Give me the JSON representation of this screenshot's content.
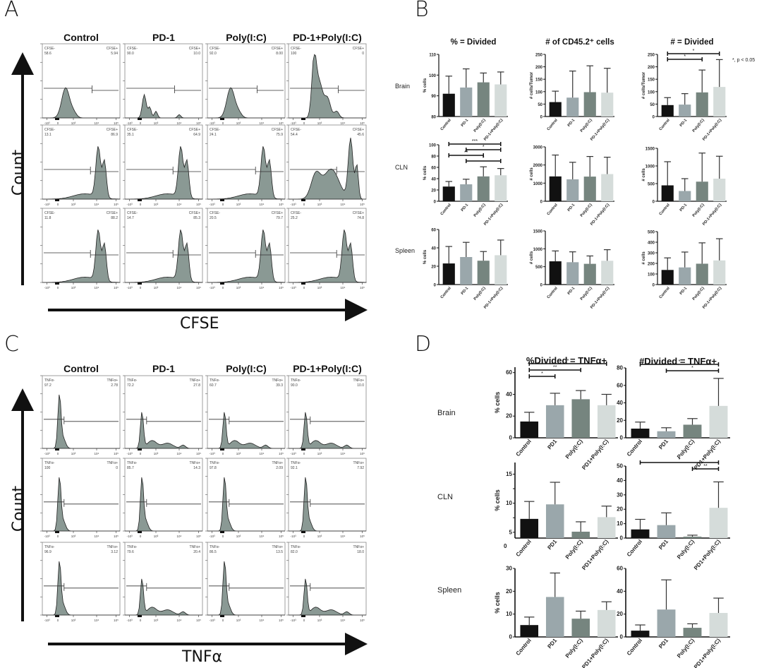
{
  "panels": {
    "A": {
      "letter": "A",
      "x_axis_label": "CFSE",
      "y_axis_label": "Count",
      "columns": [
        "Control",
        "PD-1",
        "Poly(I:C)",
        "PD-1+Poly(I:C)"
      ],
      "gate_names": [
        "CFSE-",
        "CFSE+"
      ],
      "x_ticks": [
        "-10³",
        "0",
        "10³",
        "10⁴",
        "10⁵"
      ],
      "rows": [
        {
          "gates": [
            [
              "58.6",
              "5.94"
            ],
            [
              "90.0",
              "10.0"
            ],
            [
              "92.0",
              "8.00"
            ],
            [
              "100",
              "0"
            ]
          ],
          "peaks": [
            "early",
            "early-multi",
            "early",
            "early-tall"
          ]
        },
        {
          "gates": [
            [
              "13.1",
              "86.9"
            ],
            [
              "35.1",
              "64.9"
            ],
            [
              "24.1",
              "75.9"
            ],
            [
              "54.4",
              "45.6"
            ]
          ],
          "peaks": [
            "late",
            "late",
            "late",
            "broad"
          ]
        },
        {
          "gates": [
            [
              "11.8",
              "88.2"
            ],
            [
              "14.7",
              "85.3"
            ],
            [
              "20.5",
              "79.7"
            ],
            [
              "25.2",
              "74.8"
            ]
          ],
          "peaks": [
            "late",
            "late",
            "late",
            "late"
          ]
        }
      ]
    },
    "B": {
      "letter": "B"
    },
    "C": {
      "letter": "C",
      "x_axis_label": "TNFα",
      "y_axis_label": "Count",
      "columns": [
        "Control",
        "PD-1",
        "Poly(I:C)",
        "PD-1+Poly(I:C)"
      ],
      "gate_names": [
        "TNFα-",
        "TNFα+"
      ],
      "x_ticks": [
        "-10³",
        "0",
        "10³",
        "10⁴",
        "10⁵"
      ],
      "rows": [
        {
          "gates": [
            [
              "97.2",
              "2.78"
            ],
            [
              "72.2",
              "27.8"
            ],
            [
              "60.7",
              "39.3"
            ],
            [
              "90.0",
              "10.0"
            ]
          ],
          "peaks": [
            "narrow",
            "tail",
            "tail",
            "tail"
          ]
        },
        {
          "gates": [
            [
              "100",
              "0"
            ],
            [
              "85.7",
              "14.3"
            ],
            [
              "97.8",
              "2.09"
            ],
            [
              "92.1",
              "7.92"
            ]
          ],
          "peaks": [
            "narrow",
            "narrow",
            "narrow",
            "narrow"
          ]
        },
        {
          "gates": [
            [
              "96.9",
              "3.12"
            ],
            [
              "79.6",
              "20.4"
            ],
            [
              "86.5",
              "13.5"
            ],
            [
              "82.0",
              "18.0"
            ]
          ],
          "peaks": [
            "narrow",
            "tail",
            "narrow",
            "tail"
          ]
        }
      ]
    },
    "D": {
      "letter": "D"
    }
  },
  "chart_data": [
    {
      "panel": "B",
      "type": "bar",
      "title": "% = Divided",
      "row": "Brain",
      "ylabel": "% cells",
      "ylim": [
        80,
        110
      ],
      "yticks": [
        80,
        90,
        100,
        110
      ],
      "categories": [
        "Control",
        "PD-1",
        "Poly(I:C)",
        "PD-1+Poly(I:C)"
      ],
      "values": [
        91,
        94,
        96.5,
        95.5
      ],
      "errors": [
        8.5,
        9,
        4.5,
        6
      ],
      "sig": []
    },
    {
      "panel": "B",
      "type": "bar",
      "title": "# of CD45.2⁺ cells",
      "row": "Brain",
      "ylabel": "# cells/Tumor",
      "ylim": [
        0,
        250
      ],
      "yticks": [
        0,
        50,
        100,
        150,
        200,
        250
      ],
      "categories": [
        "Control",
        "PD-1",
        "Poly(I:C)",
        "PD-1+Poly(I:C)"
      ],
      "values": [
        58,
        76,
        98,
        96
      ],
      "errors": [
        44,
        107,
        106,
        98
      ],
      "sig": []
    },
    {
      "panel": "B",
      "type": "bar",
      "title": "# = Divided",
      "row": "Brain",
      "ylabel": "# cells/Tumor",
      "ylim": [
        0,
        250
      ],
      "yticks": [
        0,
        50,
        100,
        150,
        200,
        250
      ],
      "categories": [
        "Control",
        "PD-1",
        "Poly(I:C)",
        "PD-1+Poly(I:C)"
      ],
      "values": [
        46,
        48,
        97,
        119
      ],
      "errors": [
        30,
        44,
        90,
        110
      ],
      "sig": [
        {
          "from": 0,
          "to": 2,
          "label": "*",
          "level": 0
        },
        {
          "from": 0,
          "to": 3,
          "label": "*",
          "level": 1
        }
      ],
      "annotation": "*, p < 0.05"
    },
    {
      "panel": "B",
      "type": "bar",
      "title": "",
      "row": "CLN",
      "ylabel": "% cells",
      "ylim": [
        0,
        100
      ],
      "yticks": [
        0,
        20,
        40,
        60,
        80,
        100
      ],
      "categories": [
        "Control",
        "PD-1",
        "Poly(I:C)",
        "PD-1+Poly(I:C)"
      ],
      "values": [
        26,
        30,
        44,
        46
      ],
      "errors": [
        9,
        9,
        17,
        12
      ],
      "sig": [
        {
          "from": 1,
          "to": 3,
          "label": "*",
          "level": 0
        },
        {
          "from": 0,
          "to": 2,
          "label": "**",
          "level": 1
        },
        {
          "from": 1,
          "to": 3,
          "label": "*",
          "level": 2
        },
        {
          "from": 0,
          "to": 3,
          "label": "***",
          "level": 3
        }
      ]
    },
    {
      "panel": "B",
      "type": "bar",
      "title": "",
      "row": "CLN",
      "ylabel": "# cells",
      "ylim": [
        0,
        3000
      ],
      "yticks": [
        0,
        1000,
        2000,
        3000
      ],
      "categories": [
        "Control",
        "PD-1",
        "Poly(I:C)",
        "PD-1+Poly(I:C)"
      ],
      "values": [
        1370,
        1210,
        1360,
        1500
      ],
      "errors": [
        1180,
        940,
        1110,
        930
      ],
      "sig": []
    },
    {
      "panel": "B",
      "type": "bar",
      "title": "",
      "row": "CLN",
      "ylabel": "# cells",
      "ylim": [
        0,
        1500
      ],
      "yticks": [
        0,
        500,
        1000,
        1500
      ],
      "categories": [
        "Control",
        "PD-1",
        "Poly(I:C)",
        "PD-1+Poly(I:C)"
      ],
      "values": [
        450,
        290,
        555,
        640
      ],
      "errors": [
        670,
        350,
        810,
        635
      ],
      "sig": []
    },
    {
      "panel": "B",
      "type": "bar",
      "title": "",
      "row": "Spleen",
      "ylabel": "% cells",
      "ylim": [
        0,
        60
      ],
      "yticks": [
        0,
        20,
        40,
        60
      ],
      "categories": [
        "Control",
        "PD-1",
        "Poly(I:C)",
        "PD-1+Poly(I:C)"
      ],
      "values": [
        23,
        30,
        26,
        32
      ],
      "errors": [
        18.5,
        16,
        10,
        16.5
      ],
      "sig": []
    },
    {
      "panel": "B",
      "type": "bar",
      "title": "",
      "row": "Spleen",
      "ylabel": "# cells",
      "ylim": [
        0,
        1500
      ],
      "yticks": [
        0,
        500,
        1000,
        1500
      ],
      "categories": [
        "Control",
        "PD-1",
        "Poly(I:C)",
        "PD-1+Poly(I:C)"
      ],
      "values": [
        650,
        625,
        580,
        665
      ],
      "errors": [
        290,
        290,
        220,
        310
      ],
      "sig": []
    },
    {
      "panel": "B",
      "type": "bar",
      "title": "",
      "row": "Spleen",
      "ylabel": "# cells",
      "ylim": [
        0,
        500
      ],
      "yticks": [
        0,
        100,
        200,
        300,
        400,
        500
      ],
      "categories": [
        "Control",
        "PD-1",
        "Poly(I:C)",
        "PD-1+Poly(I:C)"
      ],
      "values": [
        138,
        162,
        197,
        228
      ],
      "errors": [
        114,
        145,
        197,
        205
      ],
      "sig": []
    },
    {
      "panel": "D",
      "type": "bar",
      "title": "%Divided = TNFα+",
      "row": "Brain",
      "ylabel": "% cells",
      "ylim": [
        0,
        65
      ],
      "yticks": [
        0,
        20,
        40,
        60
      ],
      "categories": [
        "Control",
        "PD1",
        "Poly(I:C)",
        "PD1+Poly(I:C)"
      ],
      "values": [
        15,
        30,
        35.5,
        30
      ],
      "errors": [
        8.5,
        11,
        8,
        10
      ],
      "sig": [
        {
          "from": 0,
          "to": 1,
          "label": "*",
          "level": 0
        },
        {
          "from": 0,
          "to": 2,
          "label": "**",
          "level": 1
        },
        {
          "from": 0,
          "to": 3,
          "label": "*",
          "level": 2
        }
      ]
    },
    {
      "panel": "D",
      "type": "bar",
      "title": "#Divided = TNFα+",
      "row": "Brain",
      "ylabel": "",
      "ylim": [
        0,
        80
      ],
      "yticks": [
        0,
        20,
        40,
        60,
        80
      ],
      "categories": [
        "Control",
        "PD1",
        "Poly(I:C)",
        "PD1+Poly(I:C)"
      ],
      "values": [
        10.5,
        7.5,
        15,
        36.5
      ],
      "errors": [
        7.5,
        4,
        7,
        31.5
      ],
      "sig": [
        {
          "from": 1,
          "to": 3,
          "label": "*",
          "level": 0
        },
        {
          "from": 0,
          "to": 3,
          "label": "*",
          "level": 1
        }
      ]
    },
    {
      "panel": "D",
      "type": "bar",
      "title": "",
      "row": "CLN",
      "ylabel": "% cells",
      "ylim": [
        4,
        17
      ],
      "yticks": [
        5,
        10,
        15
      ],
      "ytick_labels": [
        "5",
        "10",
        "15"
      ],
      "categories": [
        "Control",
        "PD1",
        "Poly(I:C)",
        "PD1+Poly(I:C)"
      ],
      "values": [
        7.3,
        9.8,
        5.1,
        7.6
      ],
      "errors": [
        3,
        3.8,
        1.7,
        1.9
      ],
      "sig": [],
      "x_zero_label": "0"
    },
    {
      "panel": "D",
      "type": "bar",
      "title": "",
      "row": "CLN",
      "ylabel": "",
      "ylim": [
        0,
        50
      ],
      "yticks": [
        0,
        10,
        20,
        30,
        40,
        50
      ],
      "categories": [
        "Control",
        "PD1",
        "Poly(I:C)",
        "PD1+Poly(I:C)"
      ],
      "values": [
        6,
        9,
        1,
        21
      ],
      "errors": [
        7,
        8.5,
        1,
        18
      ],
      "sig": [
        {
          "from": 2,
          "to": 3,
          "label": "**",
          "level": 0
        },
        {
          "from": 0,
          "to": 3,
          "label": "*",
          "level": 1
        }
      ]
    },
    {
      "panel": "D",
      "type": "bar",
      "title": "",
      "row": "Spleen",
      "ylabel": "% cells",
      "ylim": [
        0,
        30
      ],
      "yticks": [
        0,
        10,
        20,
        30
      ],
      "categories": [
        "Control",
        "PD1",
        "Poly(I:C)",
        "PD1+Poly(I:C)"
      ],
      "values": [
        5.2,
        17.5,
        8,
        11.8
      ],
      "errors": [
        3.5,
        10.5,
        3.3,
        3.6
      ],
      "sig": []
    },
    {
      "panel": "D",
      "type": "bar",
      "title": "",
      "row": "Spleen",
      "ylabel": "",
      "ylim": [
        0,
        60
      ],
      "yticks": [
        0,
        20,
        40,
        60
      ],
      "categories": [
        "Control",
        "PD1",
        "Poly(I:C)",
        "PD1+Poly(I:C)"
      ],
      "values": [
        5.5,
        24,
        8,
        21
      ],
      "errors": [
        5,
        26,
        3.5,
        13
      ],
      "sig": []
    }
  ],
  "bar_colors": [
    "#111111",
    "#9aa7ab",
    "#76857f",
    "#d5dcda"
  ],
  "row_labels": {
    "B": [
      "Brain",
      "CLN",
      "Spleen"
    ],
    "D": [
      "Brain",
      "CLN",
      "Spleen"
    ]
  }
}
